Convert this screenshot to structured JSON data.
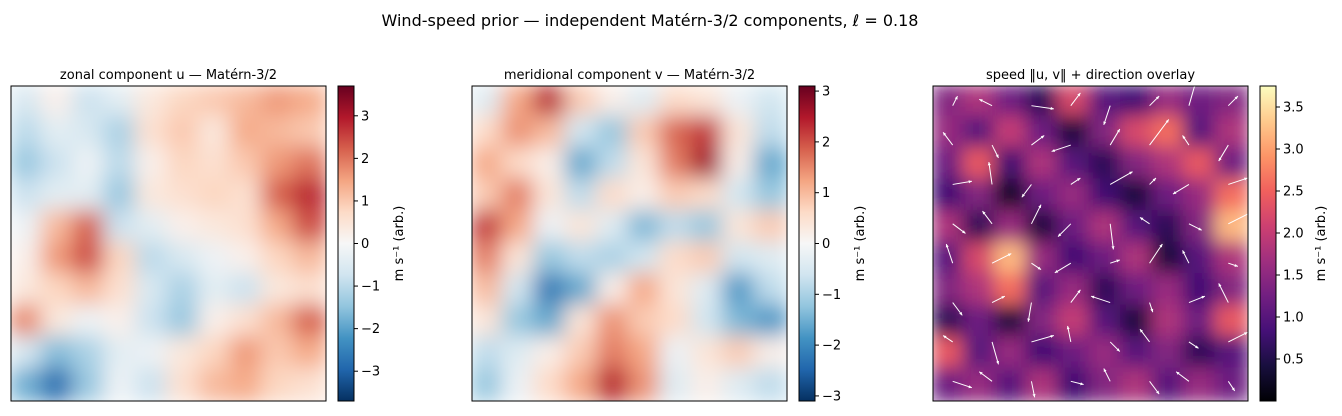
{
  "figure": {
    "title": "Wind-speed prior — independent Matérn-3/2 components, ℓ = 0.18"
  },
  "colors": {
    "rdbu": [
      "#053061",
      "#2166ac",
      "#4393c3",
      "#92c5de",
      "#d1e5f0",
      "#f7f7f7",
      "#fddbc7",
      "#f4a582",
      "#d6604d",
      "#b2182b",
      "#67001f"
    ],
    "magma": [
      "#000004",
      "#180f3e",
      "#451077",
      "#721f81",
      "#9f2f7f",
      "#cd4071",
      "#f1605d",
      "#fd9567",
      "#feca8d",
      "#fcfdbf"
    ],
    "arrow": "#ffffff"
  },
  "chart_data": [
    {
      "type": "heatmap",
      "title": "zonal component u — Matérn-3/2",
      "colormap": "RdBu_r",
      "colorbar": {
        "label": "m s⁻¹ (arb.)",
        "range": [
          -3.7,
          3.7
        ],
        "ticks": [
          -3,
          -2,
          -1,
          0,
          1,
          2,
          3
        ],
        "tick_labels": [
          "−3",
          "−2",
          "−1",
          "0",
          "1",
          "2",
          "3"
        ]
      },
      "grid_size": [
        10,
        10
      ],
      "values": [
        [
          -0.6,
          0.2,
          -0.8,
          -0.4,
          0.4,
          0.8,
          1.0,
          1.2,
          1.6,
          1.4
        ],
        [
          -1.0,
          -0.4,
          -0.6,
          -1.2,
          0.6,
          1.0,
          0.4,
          1.4,
          1.2,
          1.0
        ],
        [
          -1.4,
          -0.8,
          -0.2,
          -1.0,
          0.2,
          0.8,
          0.6,
          1.0,
          1.6,
          2.0
        ],
        [
          -0.8,
          -0.4,
          -0.4,
          -1.4,
          0.4,
          0.6,
          0.8,
          0.6,
          2.2,
          2.8
        ],
        [
          -0.2,
          1.2,
          2.2,
          -0.8,
          -0.4,
          0.2,
          0.4,
          0.6,
          1.4,
          2.4
        ],
        [
          0.2,
          1.6,
          2.4,
          0.8,
          -1.0,
          -0.6,
          -0.2,
          0.2,
          0.8,
          1.2
        ],
        [
          0.4,
          0.8,
          1.2,
          0.6,
          -0.6,
          -1.2,
          -0.4,
          -0.8,
          0.4,
          0.6
        ],
        [
          1.8,
          0.4,
          -0.2,
          0.2,
          -0.8,
          -1.4,
          0.2,
          0.6,
          1.2,
          2.2
        ],
        [
          -0.6,
          -1.6,
          -1.2,
          -0.4,
          -0.2,
          0.4,
          0.8,
          1.6,
          1.0,
          1.4
        ],
        [
          -1.8,
          -2.8,
          -1.4,
          -0.2,
          -0.8,
          0.6,
          1.2,
          1.4,
          0.8,
          0.6
        ]
      ]
    },
    {
      "type": "heatmap",
      "title": "meridional component v — Matérn-3/2",
      "colormap": "RdBu_r",
      "colorbar": {
        "label": "m s⁻¹ (arb.)",
        "range": [
          -3.1,
          3.1
        ],
        "ticks": [
          -3,
          -2,
          -1,
          0,
          1,
          2,
          3
        ],
        "tick_labels": [
          "−3",
          "−2",
          "−1",
          "0",
          "1",
          "2",
          "3"
        ]
      },
      "grid_size": [
        10,
        10
      ],
      "values": [
        [
          -0.4,
          1.2,
          2.4,
          0.8,
          0.2,
          -0.4,
          0.6,
          0.4,
          -0.2,
          -0.6
        ],
        [
          0.6,
          1.4,
          1.0,
          -0.6,
          -1.2,
          0.8,
          1.8,
          2.2,
          0.4,
          -0.8
        ],
        [
          1.2,
          0.6,
          0.2,
          -1.6,
          -0.8,
          0.4,
          1.6,
          2.6,
          0.2,
          -1.6
        ],
        [
          0.8,
          1.6,
          0.4,
          -0.8,
          0.6,
          0.2,
          0.8,
          0.6,
          -0.6,
          -1.2
        ],
        [
          2.2,
          1.2,
          -0.2,
          0.4,
          -0.4,
          -1.4,
          -0.8,
          -1.2,
          0.4,
          0.8
        ],
        [
          1.6,
          0.4,
          -1.2,
          -0.8,
          -1.0,
          -0.6,
          0.6,
          0.8,
          -0.6,
          -0.4
        ],
        [
          1.0,
          -0.6,
          -2.2,
          -1.6,
          0.2,
          1.2,
          0.4,
          -0.4,
          -1.8,
          -0.8
        ],
        [
          0.4,
          -1.2,
          -1.6,
          0.4,
          1.4,
          0.8,
          0.6,
          -0.6,
          -1.4,
          -1.8
        ],
        [
          -0.8,
          -0.4,
          0.2,
          0.8,
          1.6,
          1.2,
          -0.2,
          0.4,
          0.8,
          0.2
        ],
        [
          -1.2,
          -0.2,
          0.6,
          1.2,
          2.4,
          1.4,
          -0.4,
          0.2,
          -0.4,
          -0.8
        ]
      ]
    },
    {
      "type": "heatmap",
      "title": "speed ‖u, v‖ + direction overlay",
      "colormap": "magma",
      "colorbar": {
        "label": "m s⁻¹ (arb.)",
        "range": [
          0.0,
          3.75
        ],
        "ticks": [
          0.5,
          1.0,
          1.5,
          2.0,
          2.5,
          3.0,
          3.5
        ],
        "tick_labels": [
          "0.5",
          "1.0",
          "1.5",
          "2.0",
          "2.5",
          "3.0",
          "3.5"
        ]
      },
      "grid_size": [
        10,
        10
      ],
      "values": [
        [
          1.4,
          1.8,
          1.2,
          0.6,
          2.2,
          1.0,
          0.8,
          1.6,
          1.2,
          1.4
        ],
        [
          1.6,
          1.0,
          2.0,
          1.2,
          0.4,
          1.4,
          2.2,
          2.6,
          1.0,
          1.8
        ],
        [
          1.2,
          2.4,
          0.8,
          1.8,
          1.0,
          0.6,
          1.4,
          1.8,
          2.4,
          1.2
        ],
        [
          0.8,
          1.4,
          0.2,
          1.2,
          1.6,
          0.8,
          0.4,
          1.2,
          1.6,
          2.6
        ],
        [
          1.8,
          0.6,
          1.6,
          0.4,
          1.2,
          1.8,
          1.0,
          0.6,
          1.4,
          3.2
        ],
        [
          1.0,
          2.2,
          3.2,
          1.6,
          0.8,
          1.2,
          1.8,
          0.4,
          1.0,
          1.8
        ],
        [
          1.4,
          1.8,
          2.6,
          1.0,
          1.6,
          0.6,
          1.2,
          1.6,
          0.8,
          1.4
        ],
        [
          0.6,
          1.2,
          0.4,
          1.4,
          2.0,
          1.0,
          0.4,
          1.8,
          1.2,
          2.4
        ],
        [
          2.4,
          1.0,
          1.6,
          0.8,
          1.2,
          1.6,
          1.0,
          1.4,
          0.6,
          1.0
        ],
        [
          1.2,
          1.6,
          1.0,
          1.8,
          0.8,
          1.4,
          1.8,
          1.0,
          1.6,
          1.2
        ]
      ],
      "quiver": {
        "grid_size": [
          8,
          8
        ],
        "u": [
          [
            0.3,
            -0.8,
            1.4,
            0.6,
            -0.4,
            0.6,
            0.4,
            0.6
          ],
          [
            -0.6,
            0.4,
            0.8,
            -1.2,
            0.6,
            1.2,
            -0.4,
            -0.6
          ],
          [
            1.2,
            -0.2,
            -0.6,
            0.6,
            1.4,
            0.4,
            -1.0,
            1.2
          ],
          [
            0.8,
            -0.6,
            0.6,
            -0.8,
            0.2,
            -0.6,
            0.8,
            1.6
          ],
          [
            -0.4,
            1.2,
            0.6,
            -1.0,
            0.6,
            0.8,
            -0.4,
            0.6
          ],
          [
            0.6,
            0.8,
            -0.2,
            0.6,
            -1.2,
            0.2,
            1.0,
            -0.6
          ],
          [
            -0.6,
            0.4,
            1.4,
            -0.2,
            0.6,
            -0.6,
            0.6,
            1.2
          ],
          [
            1.2,
            -0.8,
            0.2,
            0.8,
            -0.4,
            0.6,
            -0.8,
            0.4
          ]
        ],
        "v": [
          [
            0.6,
            0.4,
            -0.2,
            0.8,
            -1.2,
            0.6,
            1.4,
            0.6
          ],
          [
            0.8,
            -0.8,
            0.6,
            -0.4,
            1.0,
            1.6,
            0.6,
            -1.0
          ],
          [
            0.2,
            1.4,
            -0.8,
            0.4,
            0.8,
            0.4,
            -0.6,
            0.4
          ],
          [
            -0.6,
            0.8,
            1.2,
            -0.8,
            -1.6,
            0.4,
            -0.4,
            0.8
          ],
          [
            1.2,
            0.6,
            -0.4,
            -0.6,
            0.2,
            1.2,
            0.8,
            -0.2
          ],
          [
            -0.8,
            0.4,
            -1.2,
            0.8,
            0.4,
            -0.6,
            0.4,
            1.2
          ],
          [
            0.4,
            -1.4,
            0.4,
            1.0,
            -0.6,
            0.8,
            -0.4,
            0.6
          ],
          [
            -0.4,
            0.6,
            -1.0,
            -0.2,
            0.8,
            -0.8,
            0.6,
            -0.6
          ]
        ]
      }
    }
  ]
}
